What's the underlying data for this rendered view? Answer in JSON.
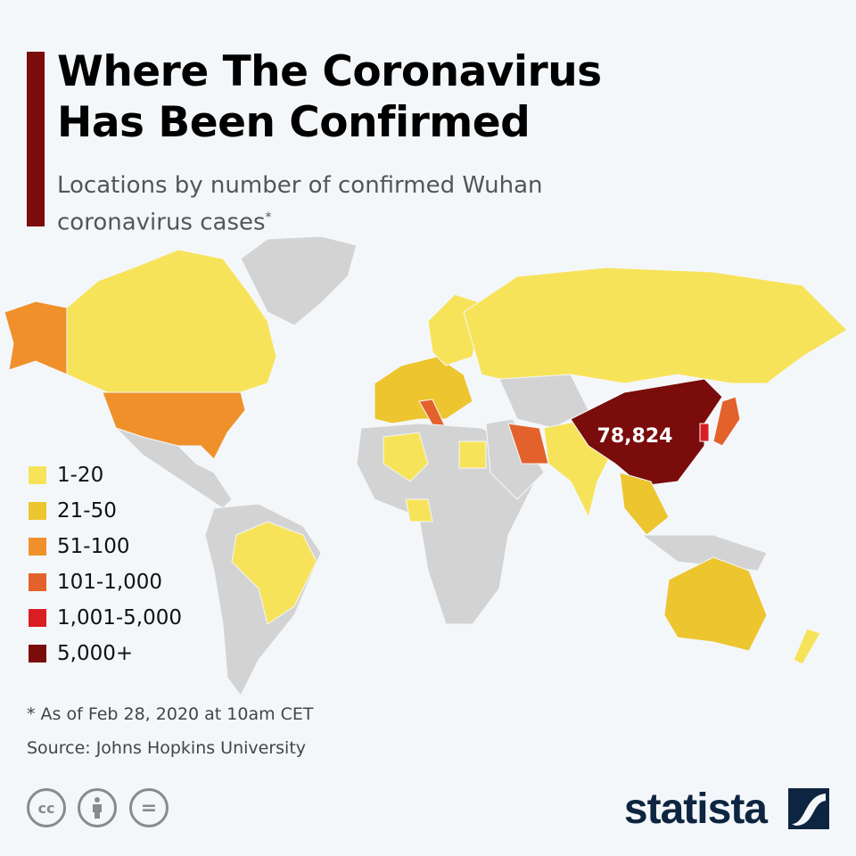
{
  "title_lines": [
    "Where The Coronavirus",
    "Has Been Confirmed"
  ],
  "subtitle": "Locations by number of confirmed Wuhan coronavirus cases",
  "subtitle_mark": "*",
  "map_label": "78,824",
  "colors": {
    "none": "#d3d3d3",
    "c1": "#f7e35a",
    "c2": "#ecc52f",
    "c3": "#f0902b",
    "c4": "#e3612a",
    "c5": "#d91e24",
    "c6": "#7a0c0c"
  },
  "legend": [
    {
      "label": "1-20",
      "color": "#f7e35a"
    },
    {
      "label": "21-50",
      "color": "#ecc52f"
    },
    {
      "label": "51-100",
      "color": "#f0902b"
    },
    {
      "label": "101-1,000",
      "color": "#e3612a"
    },
    {
      "label": "1,001-5,000",
      "color": "#d91e24"
    },
    {
      "label": "5,000+",
      "color": "#7a0c0c"
    }
  ],
  "footnote": "* As of Feb 28, 2020 at 10am CET",
  "source": "Source: Johns Hopkins University",
  "license_icons": [
    "cc-icon",
    "attribution-icon",
    "no-derivatives-icon"
  ],
  "license_text": {
    "cc": "cc",
    "nd": "="
  },
  "brand": "statista"
}
